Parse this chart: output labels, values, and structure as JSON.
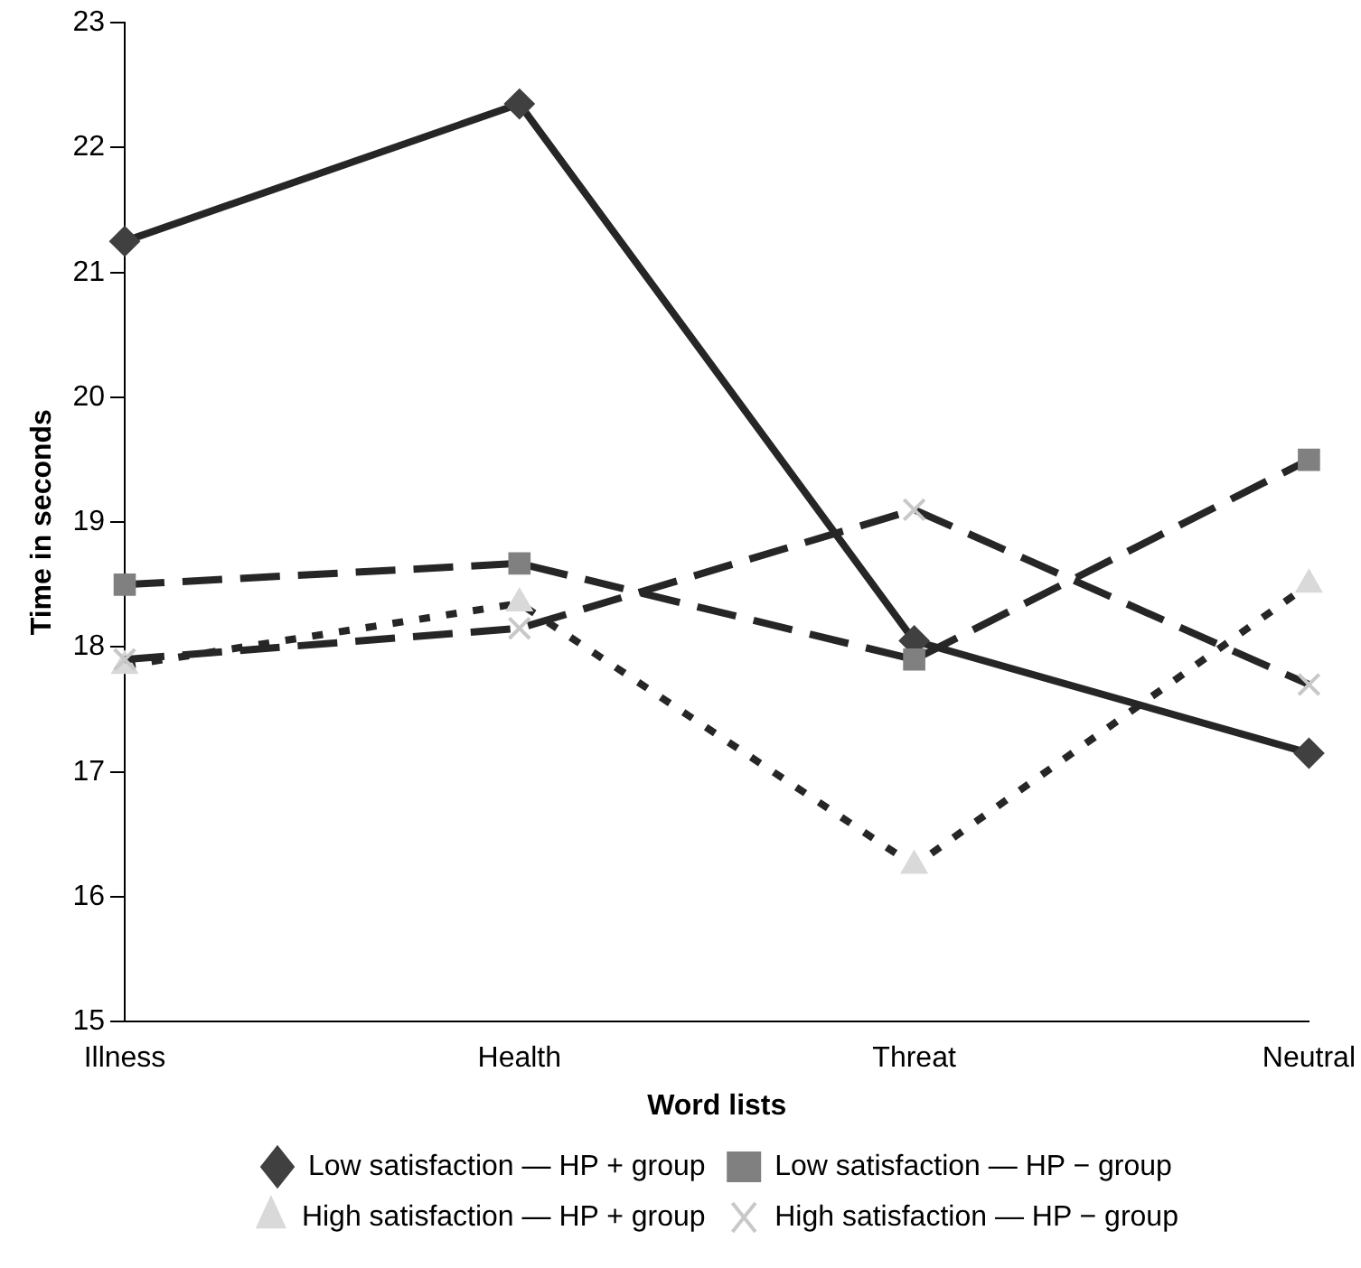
{
  "chart_data": {
    "type": "line",
    "xlabel": "Word lists",
    "ylabel": "Time in seconds",
    "categories": [
      "Illness",
      "Health",
      "Threat",
      "Neutral"
    ],
    "ylim": [
      15,
      23
    ],
    "yticks": [
      15,
      16,
      17,
      18,
      19,
      20,
      21,
      22,
      23
    ],
    "grid": false,
    "legend": "bottom",
    "series": [
      {
        "name": "Low satisfaction — HP + group",
        "color": "#262626",
        "colors": [
          "#404040",
          "#404040",
          "#404040",
          "#404040"
        ],
        "marker": "diamond",
        "line_style": "solid",
        "values": [
          21.25,
          22.35,
          18.05,
          17.15
        ]
      },
      {
        "name": "Low satisfaction — HP − group",
        "color": "#262626",
        "colors": [
          "#808080",
          "#808080",
          "#808080",
          "#808080"
        ],
        "marker": "square",
        "line_style": "dashed",
        "values": [
          18.5,
          18.67,
          17.9,
          19.5
        ]
      },
      {
        "name": "High satisfaction — HP + group",
        "color": "#262626",
        "colors": [
          "#d9d9d9",
          "#d9d9d9",
          "#d9d9d9",
          "#d9d9d9"
        ],
        "marker": "triangle",
        "line_style": "dotted",
        "values": [
          17.85,
          18.35,
          16.25,
          18.5
        ]
      },
      {
        "name": "High satisfaction — HP − group",
        "color": "#262626",
        "colors": [
          "#c8c8c8",
          "#c8c8c8",
          "#c8c8c8",
          "#c8c8c8"
        ],
        "marker": "cross",
        "line_style": "dashed",
        "values": [
          17.9,
          18.15,
          19.1,
          17.7
        ]
      }
    ]
  }
}
